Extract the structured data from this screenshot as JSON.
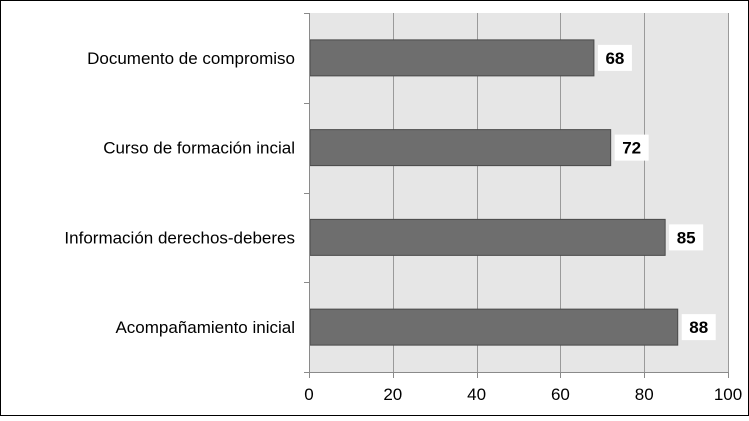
{
  "chart_data": {
    "type": "bar",
    "orientation": "horizontal",
    "categories": [
      "Documento de compromiso",
      "Curso de formación incial",
      "Información derechos-deberes",
      "Acompañamiento inicial"
    ],
    "values": [
      68,
      72,
      85,
      88
    ],
    "data_labels": [
      "68",
      "72",
      "85",
      "88"
    ],
    "xlim": [
      0,
      100
    ],
    "xticks": [
      0,
      20,
      40,
      60,
      80,
      100
    ],
    "xtick_labels": [
      "0",
      "20",
      "40",
      "60",
      "80",
      "100"
    ],
    "title": "",
    "xlabel": "",
    "ylabel": "",
    "grid": "vertical",
    "legend": "none",
    "colors": {
      "bar": "#6e6e6e",
      "bar_edge": "#4a4a4a",
      "plot_bg": "#e6e6e6",
      "grid": "#9a9a9a",
      "axis": "#8a8a8a",
      "label_box": "#ffffff",
      "text": "#000000",
      "frame": "#000000"
    }
  }
}
